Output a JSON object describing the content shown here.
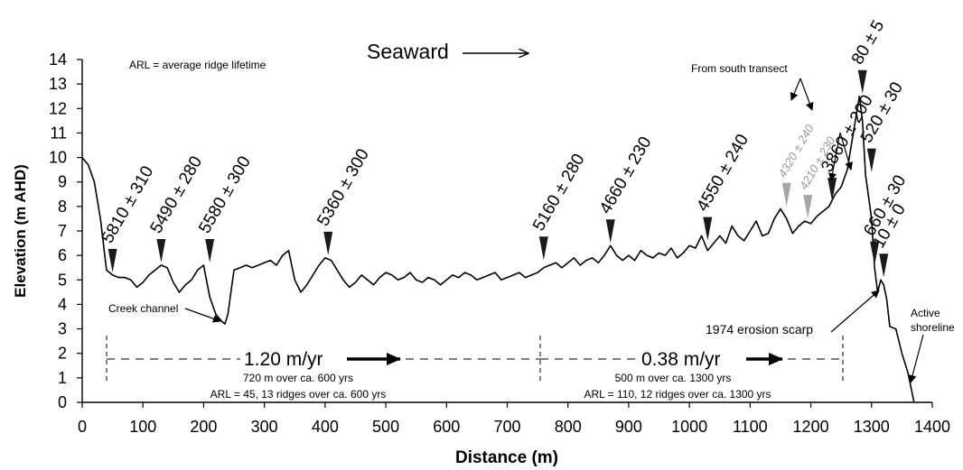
{
  "chart_data": {
    "type": "line",
    "xlabel": "Distance (m)",
    "ylabel": "Elevation (m AHD)",
    "xlim": [
      0,
      1400
    ],
    "ylim": [
      0,
      14
    ],
    "x_ticks": [
      "0",
      "100",
      "200",
      "300",
      "400",
      "500",
      "600",
      "700",
      "800",
      "900",
      "1000",
      "1100",
      "1200",
      "1300",
      "1400"
    ],
    "y_ticks": [
      "0",
      "1",
      "2",
      "3",
      "4",
      "5",
      "6",
      "7",
      "8",
      "9",
      "10",
      "11",
      "12",
      "13",
      "14"
    ],
    "grid": false,
    "series": [
      {
        "x": [
          0,
          10,
          20,
          30,
          40,
          50,
          60,
          70,
          80,
          90,
          100,
          110,
          120,
          130,
          140,
          150,
          160,
          170,
          180,
          190,
          200,
          210,
          220,
          230,
          235,
          240,
          250,
          260,
          270,
          280,
          290,
          300,
          310,
          320,
          330,
          340,
          350,
          360,
          370,
          380,
          390,
          400,
          410,
          420,
          430,
          440,
          450,
          460,
          470,
          480,
          490,
          500,
          510,
          520,
          530,
          540,
          550,
          560,
          570,
          580,
          590,
          600,
          610,
          620,
          630,
          640,
          650,
          660,
          670,
          680,
          690,
          700,
          710,
          720,
          730,
          740,
          750,
          760,
          770,
          780,
          790,
          800,
          810,
          820,
          830,
          840,
          850,
          860,
          870,
          880,
          890,
          900,
          910,
          920,
          930,
          940,
          950,
          960,
          970,
          980,
          990,
          1000,
          1010,
          1020,
          1030,
          1040,
          1050,
          1060,
          1070,
          1080,
          1090,
          1100,
          1110,
          1120,
          1130,
          1140,
          1150,
          1160,
          1170,
          1180,
          1190,
          1200,
          1210,
          1220,
          1230,
          1240,
          1250,
          1260,
          1270,
          1280,
          1285,
          1290,
          1300,
          1305,
          1310,
          1315,
          1320,
          1325,
          1330,
          1340,
          1350,
          1360,
          1370
        ],
        "y": [
          10.0,
          9.7,
          9.0,
          7.5,
          5.4,
          5.2,
          5.1,
          5.1,
          5.0,
          4.7,
          4.9,
          5.2,
          5.4,
          5.6,
          5.5,
          4.9,
          4.5,
          4.8,
          5.0,
          5.4,
          5.6,
          4.3,
          3.6,
          3.3,
          3.2,
          3.6,
          5.4,
          5.5,
          5.6,
          5.5,
          5.6,
          5.7,
          5.8,
          5.6,
          6.0,
          6.2,
          5.0,
          4.5,
          4.8,
          5.2,
          5.6,
          5.9,
          5.8,
          5.4,
          5.0,
          4.7,
          4.9,
          5.2,
          5.0,
          4.8,
          5.1,
          5.3,
          5.2,
          5.0,
          5.1,
          5.3,
          5.0,
          4.9,
          5.1,
          5.0,
          4.8,
          5.0,
          5.2,
          5.1,
          5.3,
          5.2,
          5.0,
          5.1,
          5.2,
          5.3,
          5.0,
          5.1,
          5.2,
          5.3,
          5.1,
          5.2,
          5.3,
          5.5,
          5.6,
          5.7,
          5.5,
          5.7,
          5.9,
          5.6,
          5.8,
          5.9,
          5.7,
          6.0,
          6.4,
          6.0,
          5.8,
          6.0,
          5.8,
          6.2,
          6.0,
          5.9,
          6.1,
          6.0,
          6.3,
          5.9,
          6.1,
          6.4,
          6.3,
          6.8,
          6.2,
          6.5,
          6.8,
          6.5,
          7.2,
          6.8,
          6.6,
          7.0,
          7.4,
          6.8,
          6.9,
          7.5,
          7.9,
          7.5,
          6.9,
          7.2,
          7.4,
          7.3,
          7.6,
          7.8,
          8.0,
          8.5,
          8.8,
          9.5,
          11.0,
          12.5,
          11.5,
          9.3,
          7.5,
          5.5,
          4.5,
          5.0,
          4.8,
          4.2,
          3.1,
          3.0,
          2.0,
          1.2,
          0.0
        ]
      }
    ],
    "dating_labels": [
      {
        "text": "5810 ± 310",
        "x": 50,
        "y": 5.2
      },
      {
        "text": "5490 ± 280",
        "x": 130,
        "y": 5.6
      },
      {
        "text": "5580 ± 300",
        "x": 210,
        "y": 5.6
      },
      {
        "text": "5360 ± 300",
        "x": 405,
        "y": 5.9
      },
      {
        "text": "5160 ± 280",
        "x": 760,
        "y": 5.7
      },
      {
        "text": "4660 ± 230",
        "x": 870,
        "y": 6.4
      },
      {
        "text": "4550 ± 240",
        "x": 1030,
        "y": 6.5
      },
      {
        "text": "4320 ± 240",
        "x": 1160,
        "y": 7.9
      },
      {
        "text": "4210 ± 230",
        "x": 1195,
        "y": 7.4
      },
      {
        "text": "3860 ± 200",
        "x": 1235,
        "y": 8.1
      },
      {
        "text": "80 ± 5",
        "x": 1285,
        "y": 12.5
      },
      {
        "text": "520 ± 30",
        "x": 1300,
        "y": 9.3
      },
      {
        "text": "660 ± 30",
        "x": 1305,
        "y": 5.5
      },
      {
        "text": "10 ± 0",
        "x": 1320,
        "y": 5.0
      }
    ],
    "annotations": {
      "seaward": "Seaward",
      "arl_def": "ARL = average ridge lifetime",
      "from_south": "From south transect",
      "creek": "Creek channel",
      "scarp": "1974 erosion scarp",
      "active": "Active",
      "shoreline": "shoreline",
      "rate1": "1.20 m/yr",
      "rate1_sub1": "720 m over ca. 600 yrs",
      "rate1_sub2": "ARL = 45, 13 ridges over ca. 600 yrs",
      "rate2": "0.38 m/yr",
      "rate2_sub1": "500 m over ca. 1300 yrs",
      "rate2_sub2": "ARL = 110, 12 ridges over ca. 1300 yrs"
    }
  }
}
